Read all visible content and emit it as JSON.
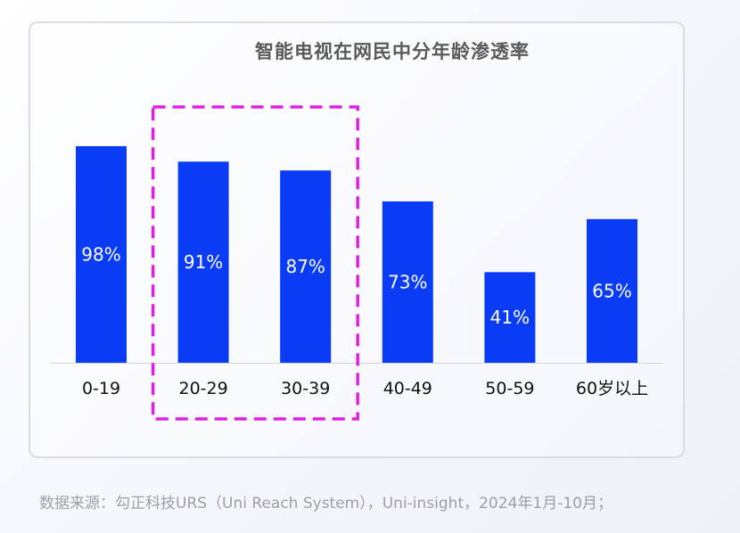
{
  "chart_data": {
    "type": "bar",
    "title": "智能电视在网民中分年龄渗透率",
    "categories": [
      "0-19",
      "20-29",
      "30-39",
      "40-49",
      "50-59",
      "60岁以上"
    ],
    "values": [
      98,
      91,
      87,
      73,
      41,
      65
    ],
    "value_labels": [
      "98%",
      "91%",
      "87%",
      "73%",
      "41%",
      "65%"
    ],
    "ylim": [
      0,
      100
    ],
    "grid": false,
    "highlight_categories": [
      "20-29",
      "30-39"
    ],
    "colors": {
      "bar": "#0a3cf5",
      "label": "#ffffff",
      "highlight_border": "#e020e0",
      "axis": "#cfd3da"
    }
  },
  "source": "数据来源：勾正科技URS（Uni Reach System），Uni-insight，2024年1月-10月；"
}
